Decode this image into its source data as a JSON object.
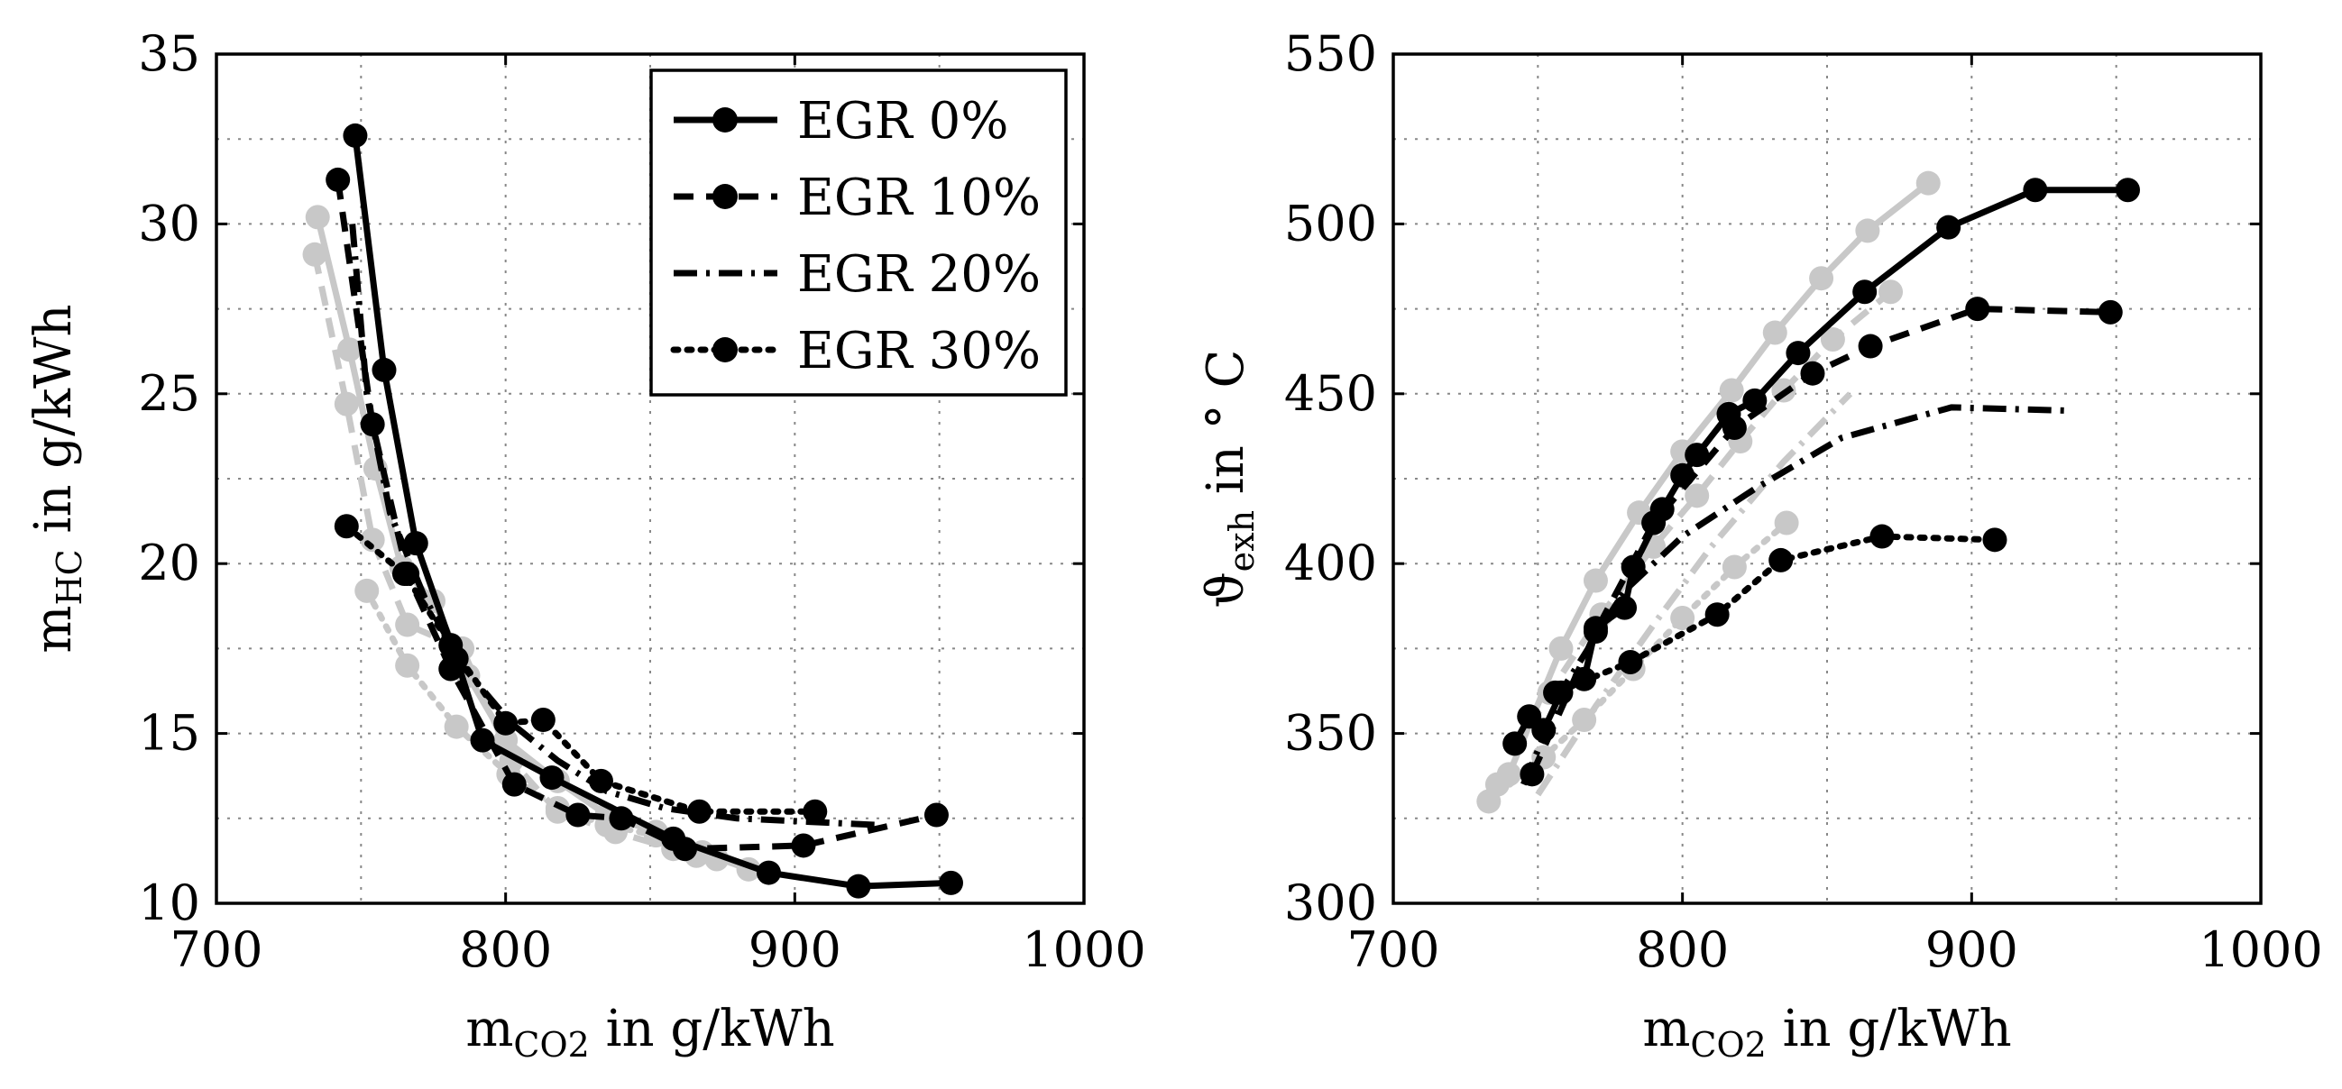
{
  "chart_data": [
    {
      "type": "line",
      "xlabel": "m",
      "xlabel_sub": "CO2",
      "xlabel_unit": " in g/kWh",
      "ylabel": "m",
      "ylabel_sub": "HC",
      "ylabel_unit": " in g/kWh",
      "xlim": [
        700,
        1000
      ],
      "ylim": [
        10,
        35
      ],
      "xticks": [
        700,
        800,
        900,
        1000
      ],
      "yticks": [
        10,
        15,
        20,
        25,
        30,
        35
      ],
      "grid": true,
      "legend_position": "top-right",
      "series": [
        {
          "name": "EGR 0%",
          "color": "#000000",
          "dash": "solid",
          "marker": true,
          "x": [
            748,
            758,
            769,
            783,
            792,
            816,
            858,
            891,
            922,
            954
          ],
          "y": [
            32.6,
            25.7,
            20.6,
            17.2,
            14.8,
            13.7,
            11.9,
            10.9,
            10.5,
            10.6
          ]
        },
        {
          "name": "EGR 10%",
          "color": "#000000",
          "dash": "dashed",
          "marker": true,
          "x": [
            742,
            754,
            766,
            781,
            803,
            825,
            840,
            862,
            903,
            949
          ],
          "y": [
            31.3,
            24.1,
            19.7,
            16.9,
            13.5,
            12.6,
            12.5,
            11.6,
            11.7,
            12.6
          ]
        },
        {
          "name": "EGR 20%",
          "color": "#000000",
          "dash": "dashdot",
          "marker": false,
          "x": [
            747,
            752,
            760,
            772,
            785,
            802,
            818,
            835,
            855,
            880,
            905,
            930
          ],
          "y": [
            30.0,
            25.0,
            21.5,
            19.0,
            17.0,
            15.3,
            14.2,
            13.3,
            12.8,
            12.5,
            12.4,
            12.3
          ]
        },
        {
          "name": "EGR 30%",
          "color": "#000000",
          "dash": "dotted",
          "marker": true,
          "x": [
            745,
            765,
            781,
            800,
            813,
            833,
            867,
            907
          ],
          "y": [
            21.1,
            19.7,
            17.6,
            15.3,
            15.4,
            13.6,
            12.7,
            12.7
          ]
        },
        {
          "name": "",
          "color": "#c8c8c8",
          "dash": "solid",
          "marker": true,
          "x": [
            735,
            746,
            755,
            764,
            775,
            787,
            800,
            818,
            835,
            852,
            868,
            884
          ],
          "y": [
            30.2,
            26.3,
            22.8,
            19.9,
            18.9,
            16.7,
            14.8,
            13.6,
            12.6,
            12.1,
            11.5,
            11.0
          ]
        },
        {
          "name": "",
          "color": "#c8c8c8",
          "dash": "dashed",
          "marker": true,
          "x": [
            734,
            745,
            754,
            766,
            785,
            802,
            818,
            838,
            858,
            873
          ],
          "y": [
            29.1,
            24.7,
            20.7,
            18.2,
            17.5,
            14.2,
            12.7,
            12.1,
            11.6,
            11.3
          ]
        },
        {
          "name": "",
          "color": "#c8c8c8",
          "dash": "dotted",
          "marker": true,
          "x": [
            752,
            766,
            783,
            801,
            818,
            835,
            852,
            866
          ],
          "y": [
            19.2,
            17.0,
            15.2,
            13.8,
            12.8,
            12.3,
            12.0,
            11.4
          ]
        }
      ],
      "legend": [
        {
          "label": "EGR 0%",
          "dash": "solid",
          "marker": true
        },
        {
          "label": "EGR 10%",
          "dash": "dashed",
          "marker": true
        },
        {
          "label": "EGR 20%",
          "dash": "dashdot",
          "marker": false
        },
        {
          "label": "EGR 30%",
          "dash": "dotted",
          "marker": true
        }
      ]
    },
    {
      "type": "line",
      "xlabel": "m",
      "xlabel_sub": "CO2",
      "xlabel_unit": " in g/kWh",
      "ylabel": "ϑ",
      "ylabel_sub": "exh",
      "ylabel_unit": " in ° C",
      "xlim": [
        700,
        1000
      ],
      "ylim": [
        300,
        550
      ],
      "xticks": [
        700,
        800,
        900,
        1000
      ],
      "yticks": [
        300,
        350,
        400,
        450,
        500,
        550
      ],
      "grid": true,
      "series": [
        {
          "name": "EGR 0%",
          "color": "#000000",
          "dash": "solid",
          "marker": true,
          "x": [
            742,
            747,
            752,
            758,
            766,
            770,
            780,
            783,
            793,
            800,
            805,
            816,
            825,
            840,
            863,
            892,
            922,
            954
          ],
          "y": [
            347,
            355,
            351,
            362,
            366,
            381,
            387,
            399,
            416,
            426,
            432,
            444,
            448,
            462,
            480,
            499,
            510,
            510
          ],
          "marker_idx": [
            0,
            1,
            2,
            4,
            5,
            6,
            7,
            8,
            9,
            10,
            11,
            12,
            13,
            14,
            15,
            16,
            17
          ]
        },
        {
          "name": "EGR 10%",
          "color": "#000000",
          "dash": "dashed",
          "marker": true,
          "x": [
            748,
            770,
            790,
            818,
            845,
            865,
            902,
            948
          ],
          "y": [
            338,
            380,
            412,
            440,
            456,
            464,
            475,
            474
          ],
          "marker_idx": [
            6,
            7,
            5
          ]
        },
        {
          "name": "EGR 20%",
          "color": "#000000",
          "dash": "dashdot",
          "marker": false,
          "x": [
            745,
            760,
            780,
            800,
            825,
            855,
            893,
            935
          ],
          "y": [
            335,
            365,
            392,
            408,
            422,
            437,
            446,
            445
          ]
        },
        {
          "name": "EGR 30%",
          "color": "#000000",
          "dash": "dotted",
          "marker": true,
          "x": [
            756,
            782,
            812,
            834,
            869,
            908
          ],
          "y": [
            362,
            371,
            385,
            401,
            408,
            407
          ]
        },
        {
          "name": "",
          "color": "#c8c8c8",
          "dash": "solid",
          "marker": true,
          "x": [
            740,
            758,
            770,
            785,
            800,
            817,
            832,
            848,
            864,
            885
          ],
          "y": [
            338,
            375,
            395,
            415,
            433,
            451,
            468,
            484,
            498,
            512
          ]
        },
        {
          "name": "",
          "color": "#c8c8c8",
          "dash": "dashed",
          "marker": true,
          "x": [
            736,
            754,
            772,
            790,
            805,
            820,
            835,
            852,
            872
          ],
          "y": [
            335,
            362,
            385,
            405,
            420,
            436,
            451,
            466,
            480
          ]
        },
        {
          "name": "",
          "color": "#c8c8c8",
          "dash": "dashdot",
          "marker": false,
          "x": [
            750,
            770,
            790,
            810,
            835,
            858
          ],
          "y": [
            332,
            358,
            382,
            405,
            430,
            450
          ]
        },
        {
          "name": "",
          "color": "#c8c8c8",
          "dash": "dotted",
          "marker": true,
          "x": [
            733,
            752,
            766,
            783,
            800,
            818,
            836
          ],
          "y": [
            330,
            343,
            354,
            369,
            384,
            399,
            412
          ]
        }
      ]
    }
  ]
}
